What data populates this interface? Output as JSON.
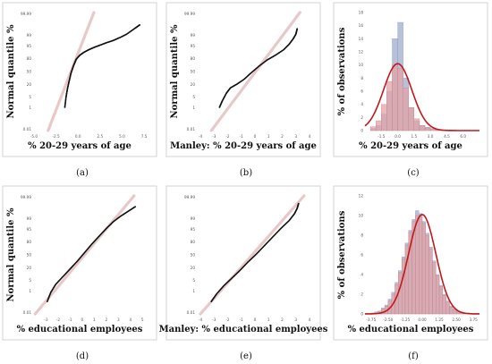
{
  "chart_data": [
    {
      "id": "a",
      "type": "scatter",
      "caption": "(a)",
      "ylabel": "Normal quantile %",
      "xlabel": "% 20-29 years of age",
      "x_ticks": [
        "-5.0",
        "-2.5",
        "0.0",
        "2.5",
        "5.0",
        "7.5"
      ],
      "y_ticks": [
        "99.99",
        "99",
        "95",
        "80",
        "50",
        "20",
        "5",
        "1",
        "0.01"
      ],
      "xlim": [
        -5,
        8
      ],
      "ylim_z": [
        -3.8,
        3.8
      ],
      "ref_line_color": "#e7c9c9",
      "point_color": "#111111",
      "points": [
        [
          -1.5,
          -2.3
        ],
        [
          -1.35,
          -1.6
        ],
        [
          -1.2,
          -1.1
        ],
        [
          -1.0,
          -0.6
        ],
        [
          -0.8,
          -0.1
        ],
        [
          -0.5,
          0.4
        ],
        [
          -0.2,
          0.8
        ],
        [
          0.2,
          1.05
        ],
        [
          0.7,
          1.25
        ],
        [
          1.2,
          1.4
        ],
        [
          1.8,
          1.55
        ],
        [
          2.5,
          1.7
        ],
        [
          3.2,
          1.85
        ],
        [
          4.0,
          2.0
        ],
        [
          4.8,
          2.2
        ],
        [
          5.5,
          2.4
        ],
        [
          6.5,
          2.8
        ],
        [
          7.0,
          3.0
        ]
      ],
      "ref_line": [
        [
          -3.4,
          -3.8
        ],
        [
          1.8,
          3.8
        ]
      ]
    },
    {
      "id": "b",
      "type": "scatter",
      "caption": "(b)",
      "ylabel": "Normal quantile %",
      "xlabel": "Manley: % 20-29 years of age",
      "x_ticks": [
        "-4",
        "-3",
        "-2",
        "-1",
        "0",
        "1",
        "2",
        "3",
        "4"
      ],
      "y_ticks": [
        "99.99",
        "99",
        "95",
        "80",
        "50",
        "20",
        "5",
        "1",
        "0.01"
      ],
      "xlim": [
        -4.2,
        4.2
      ],
      "ylim_z": [
        -3.8,
        3.8
      ],
      "ref_line_color": "#e7c9c9",
      "point_color": "#111111",
      "points": [
        [
          -2.6,
          -2.3
        ],
        [
          -2.4,
          -1.9
        ],
        [
          -2.1,
          -1.4
        ],
        [
          -1.8,
          -1.05
        ],
        [
          -1.3,
          -0.8
        ],
        [
          -0.8,
          -0.5
        ],
        [
          -0.3,
          -0.1
        ],
        [
          0.3,
          0.35
        ],
        [
          0.9,
          0.75
        ],
        [
          1.5,
          1.05
        ],
        [
          2.1,
          1.4
        ],
        [
          2.5,
          1.75
        ],
        [
          2.8,
          2.1
        ],
        [
          3.0,
          2.4
        ],
        [
          3.1,
          2.75
        ]
      ],
      "ref_line": [
        [
          -3.2,
          -3.8
        ],
        [
          3.3,
          3.8
        ]
      ]
    },
    {
      "id": "c",
      "type": "histogram",
      "caption": "(c)",
      "ylabel": "% of observations",
      "xlabel": "% 20-29 years of age",
      "x_ticks": [
        "-1.5",
        "0.0",
        "1.5",
        "3.0",
        "4.5",
        "6.0"
      ],
      "y_ticks": [
        "0",
        "2",
        "4",
        "6",
        "8",
        "10",
        "12",
        "14",
        "16",
        "18"
      ],
      "xlim": [
        -3,
        7.5
      ],
      "ylim": [
        0,
        18
      ],
      "bin_start": -2.5,
      "bin_width": 0.5,
      "blue_bins": [
        0.3,
        0.8,
        2.5,
        6,
        14,
        16.5,
        8,
        3.5,
        1.5,
        0.8,
        0.5,
        0.3,
        0.2,
        0.1,
        0.1,
        0.05,
        0.05,
        0.05
      ],
      "red_bins": [
        0.6,
        1.5,
        4,
        7.5,
        10,
        9.5,
        6.5,
        3.5,
        1.8,
        0.8,
        0.4,
        0.2,
        0.1,
        0.05,
        0.05,
        0,
        0,
        0
      ],
      "curve": {
        "mean": 0.0,
        "sd": 1.3,
        "peak": 10.2
      },
      "blue_color": "#aab7d3",
      "red_color": "#e2a3a6",
      "curve_color": "#c0181c"
    },
    {
      "id": "d",
      "type": "scatter",
      "caption": "(d)",
      "ylabel": "Normal quantile %",
      "xlabel": "% educational employees",
      "x_ticks": [
        "-3",
        "-2",
        "-1",
        "0",
        "1",
        "2",
        "3",
        "4",
        "5"
      ],
      "y_ticks": [
        "99.99",
        "99",
        "95",
        "80",
        "50",
        "20",
        "5",
        "1",
        "0.01"
      ],
      "xlim": [
        -4,
        5.5
      ],
      "ylim_z": [
        -3.8,
        3.8
      ],
      "ref_line_color": "#e7c9c9",
      "point_color": "#111111",
      "points": [
        [
          -2.9,
          -3.0
        ],
        [
          -2.6,
          -2.4
        ],
        [
          -2.2,
          -1.9
        ],
        [
          -1.6,
          -1.4
        ],
        [
          -1.0,
          -0.9
        ],
        [
          -0.4,
          -0.4
        ],
        [
          0.2,
          0.15
        ],
        [
          0.8,
          0.7
        ],
        [
          1.4,
          1.2
        ],
        [
          2.0,
          1.7
        ],
        [
          2.6,
          2.15
        ],
        [
          3.2,
          2.5
        ],
        [
          3.8,
          2.8
        ],
        [
          4.4,
          3.1
        ]
      ],
      "ref_line": [
        [
          -3.9,
          -3.8
        ],
        [
          4.3,
          3.8
        ]
      ]
    },
    {
      "id": "e",
      "type": "scatter",
      "caption": "(e)",
      "ylabel": "",
      "xlabel": "Manley: % educational employees",
      "x_ticks": [
        "-4",
        "-3",
        "-2",
        "-1",
        "0",
        "1",
        "2",
        "3",
        "4"
      ],
      "y_ticks": [
        "99.99",
        "99",
        "95",
        "80",
        "50",
        "20",
        "5",
        "1",
        "0.01"
      ],
      "xlim": [
        -4.2,
        4.2
      ],
      "ylim_z": [
        -3.8,
        3.8
      ],
      "ref_line_color": "#e7c9c9",
      "point_color": "#111111",
      "points": [
        [
          -3.2,
          -3.0
        ],
        [
          -2.8,
          -2.5
        ],
        [
          -2.3,
          -2.0
        ],
        [
          -1.7,
          -1.5
        ],
        [
          -1.1,
          -1.0
        ],
        [
          -0.5,
          -0.45
        ],
        [
          0.1,
          0.05
        ],
        [
          0.7,
          0.6
        ],
        [
          1.3,
          1.15
        ],
        [
          1.9,
          1.7
        ],
        [
          2.5,
          2.2
        ],
        [
          2.9,
          2.65
        ],
        [
          3.1,
          3.0
        ],
        [
          3.2,
          3.3
        ]
      ],
      "ref_line": [
        [
          -4.0,
          -3.8
        ],
        [
          3.6,
          3.8
        ]
      ]
    },
    {
      "id": "f",
      "type": "histogram",
      "caption": "(f)",
      "ylabel": "% of observations",
      "xlabel": "% educational employees",
      "x_ticks": [
        "-3.75",
        "-2.50",
        "-1.25",
        "0.00",
        "1.25",
        "2.50",
        "3.75"
      ],
      "y_ticks": [
        "0",
        "2",
        "4",
        "6",
        "8",
        "10",
        "12"
      ],
      "xlim": [
        -4.2,
        4.2
      ],
      "ylim": [
        0,
        12
      ],
      "bin_start": -3.75,
      "bin_width": 0.25,
      "blue_bins": [
        0.1,
        0.2,
        0.3,
        0.6,
        0.9,
        1.5,
        2.2,
        3.2,
        4.4,
        5.8,
        7.2,
        8.5,
        9.6,
        10.5,
        10.2,
        9.4,
        8.2,
        6.8,
        5.4,
        4.0,
        2.9,
        2.0,
        1.3,
        0.8,
        0.5,
        0.3,
        0.2,
        0.1,
        0.1,
        0.05
      ],
      "red_bins": [
        0.05,
        0.1,
        0.2,
        0.5,
        0.8,
        1.3,
        2.0,
        3.0,
        4.2,
        5.6,
        7.0,
        8.3,
        9.4,
        10.0,
        9.9,
        9.2,
        8.0,
        6.6,
        5.2,
        3.9,
        2.8,
        1.9,
        1.2,
        0.7,
        0.4,
        0.2,
        0.1,
        0.05,
        0.05,
        0
      ],
      "curve": {
        "mean": 0.0,
        "sd": 1.0,
        "peak": 10.1
      },
      "blue_color": "#aab7d3",
      "red_color": "#e2a3a6",
      "curve_color": "#c0181c"
    }
  ]
}
